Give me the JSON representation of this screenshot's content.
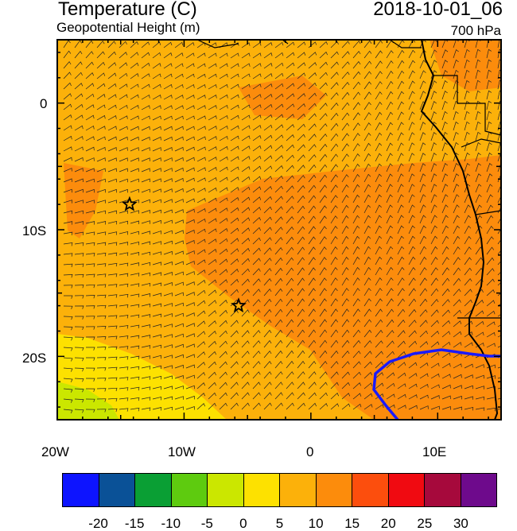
{
  "header": {
    "title": "Temperature (C)",
    "subtitle": "Geopotential Height (m)",
    "datetime": "2018-10-01_06",
    "level": "700 hPa"
  },
  "axes": {
    "lat_labels": [
      "0",
      "10S",
      "20S"
    ],
    "lon_labels": [
      "20W",
      "10W",
      "0",
      "10E"
    ]
  },
  "map": {
    "lon_range": [
      -20,
      15
    ],
    "lat_range": [
      -25,
      5
    ],
    "regions": [
      {
        "name": "warm-core",
        "color": "#fc8c0c"
      },
      {
        "name": "cool-southwest",
        "color": "#fde100"
      },
      {
        "name": "coldest-corner",
        "color": "#cbe700"
      },
      {
        "name": "background",
        "color": "#fcb10a"
      }
    ],
    "markers": [
      {
        "symbol": "star",
        "lon": -14.3,
        "lat": -8.0
      },
      {
        "symbol": "star",
        "lon": -5.7,
        "lat": -16.0
      }
    ],
    "contour_color": "#1a1aff"
  },
  "colorbar": {
    "colors": [
      "#0d14ff",
      "#0a5197",
      "#0a9f34",
      "#5ecb0f",
      "#cbe700",
      "#fde100",
      "#fcb10a",
      "#fc8c0c",
      "#fc4e0d",
      "#f00a11",
      "#a6093c",
      "#6e0a8c"
    ],
    "labels": [
      "-20",
      "-15",
      "-10",
      "-5",
      "0",
      "5",
      "10",
      "15",
      "20",
      "25",
      "30"
    ]
  }
}
